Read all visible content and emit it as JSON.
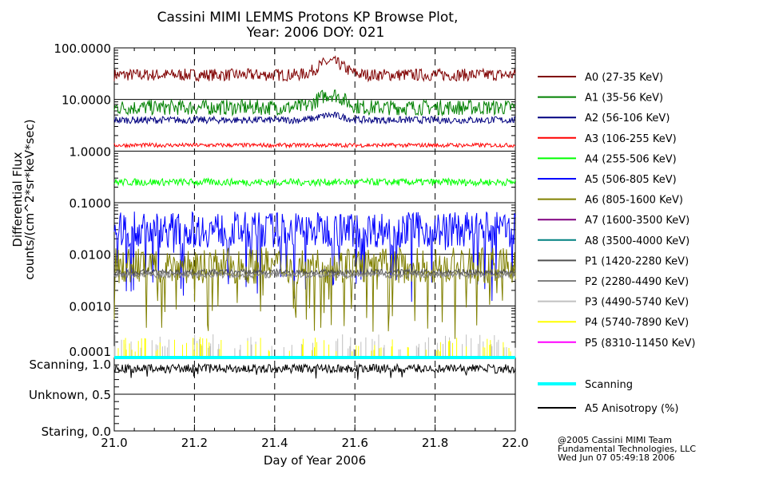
{
  "chart_data": {
    "type": "line",
    "title": [
      "Cassini MIMI LEMMS Protons KP Browse Plot,",
      "Year: 2006 DOY: 021"
    ],
    "xlabel": "Day of Year 2006",
    "ylabel": [
      "Differential Flux",
      "counts/(cm^2*sr*keV*sec)"
    ],
    "xlim": [
      21.0,
      22.0
    ],
    "xticks": [
      "21.0",
      "21.2",
      "21.4",
      "21.6",
      "21.8",
      "22.0"
    ],
    "ylim": [
      0.0001,
      100
    ],
    "yscale": "log",
    "yticks": [
      "100.0000",
      "10.0000",
      "1.0000",
      "0.1000",
      "0.0100",
      "0.0010",
      "0.0001"
    ],
    "lower_panel": {
      "ylim": [
        0,
        1
      ],
      "yticks": [
        "Scanning, 1.0",
        "Unknown, 0.5",
        "Staring, 0.0"
      ]
    },
    "grid": true,
    "legend_placement": "right",
    "series": [
      {
        "name": "A0 (27-35 KeV)",
        "color": "#800000",
        "typical": 30,
        "spread": 0.12
      },
      {
        "name": "A1 (35-56 KeV)",
        "color": "#008000",
        "typical": 7,
        "spread": 0.15
      },
      {
        "name": "A2 (56-106 KeV)",
        "color": "#000080",
        "typical": 4,
        "spread": 0.07
      },
      {
        "name": "A3 (106-255 KeV)",
        "color": "#ff0000",
        "typical": 1.3,
        "spread": 0.04
      },
      {
        "name": "A4 (255-506 KeV)",
        "color": "#00ff00",
        "typical": 0.25,
        "spread": 0.07
      },
      {
        "name": "A5 (506-805 KeV)",
        "color": "#0000ff",
        "typical": 0.03,
        "spread": 0.35
      },
      {
        "name": "A6 (805-1600 KeV)",
        "color": "#808000",
        "typical": 0.006,
        "spread": 0.35
      },
      {
        "name": "A7 (1600-3500 KeV)",
        "color": "#800080",
        "typical": 0.004,
        "spread": 0.05
      },
      {
        "name": "A8 (3500-4000 KeV)",
        "color": "#008080",
        "typical": null,
        "spread": 0
      },
      {
        "name": "P1 (1420-2280 KeV)",
        "color": "#505050",
        "typical": 0.0045,
        "spread": 0.06
      },
      {
        "name": "P2 (2280-4490 KeV)",
        "color": "#808080",
        "typical": 0.004,
        "spread": 0.06
      },
      {
        "name": "P3 (4490-5740 KeV)",
        "color": "#c0c0c0",
        "typical": 0.0002,
        "spread": 0.15
      },
      {
        "name": "P4 (5740-7890 KeV)",
        "color": "#ffff00",
        "typical": 0.00018,
        "spread": 0.15
      },
      {
        "name": "P5 (8310-11450 KeV)",
        "color": "#ff00ff",
        "typical": null,
        "spread": 0
      }
    ],
    "lower_series": [
      {
        "name": "Scanning",
        "color": "#00ffff",
        "typical": 1.0
      },
      {
        "name": "A5 Anisotropy (%)",
        "color": "#000000",
        "typical": 0.85
      }
    ]
  },
  "footer": [
    "@2005 Cassini MIMI Team",
    "Fundamental Technologies, LLC",
    "Wed Jun 07 05:49:18 2006"
  ]
}
